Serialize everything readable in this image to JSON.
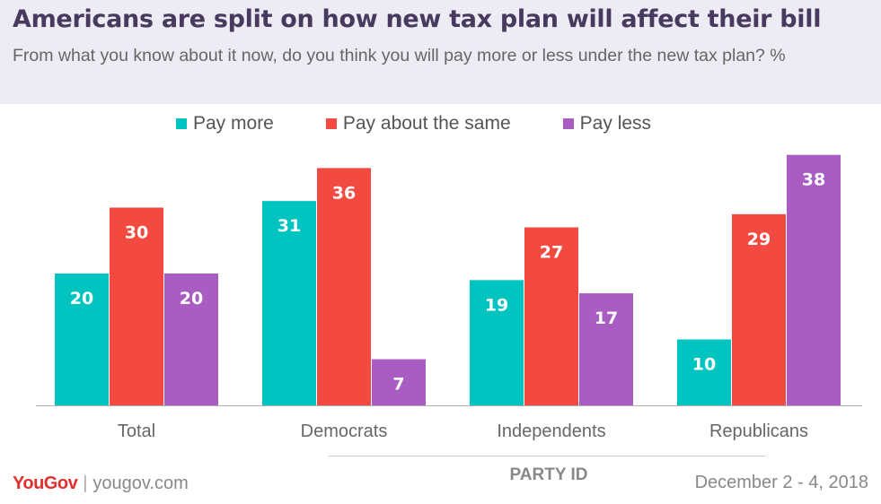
{
  "header": {
    "title": "Americans are split on how new tax plan will affect their bill",
    "subtitle": "From what you know about it now, do you think you will pay more or less under the new tax plan? %"
  },
  "chart_data": {
    "type": "bar",
    "categories": [
      "Total",
      "Democrats",
      "Independents",
      "Republicans"
    ],
    "group_label": "PARTY ID",
    "series": [
      {
        "name": "Pay more",
        "color": "#00c4bf",
        "values": [
          20,
          31,
          19,
          10
        ]
      },
      {
        "name": "Pay about the same",
        "color": "#f24a40",
        "values": [
          30,
          36,
          27,
          29
        ]
      },
      {
        "name": "Pay less",
        "color": "#a95cc2",
        "values": [
          20,
          7,
          17,
          38
        ]
      }
    ],
    "ylim": [
      0,
      40
    ],
    "grid": false,
    "legend_position": "top"
  },
  "footer": {
    "logo": "YouGov",
    "site": "yougov.com",
    "date": "December 2 - 4, 2018"
  }
}
